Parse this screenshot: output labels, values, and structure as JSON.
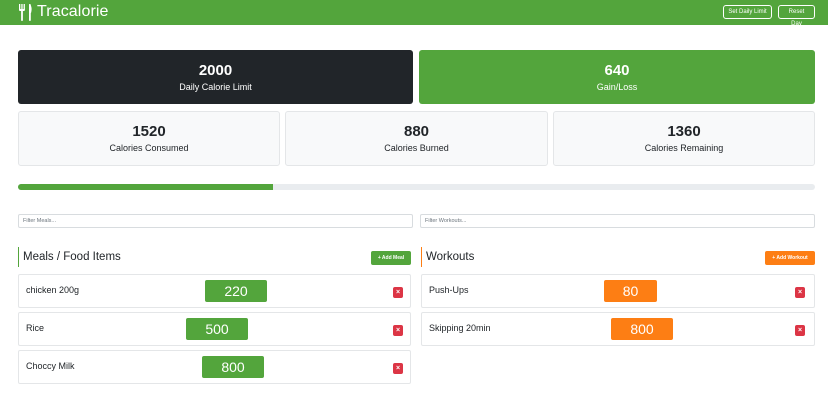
{
  "app": {
    "title": "Tracalorie",
    "set_limit_label": "Set Daily Limit",
    "reset_label": "Reset Day",
    "brand_icon": "fork-knife-icon"
  },
  "stats": {
    "limit": {
      "value": "2000",
      "label": "Daily Calorie Limit"
    },
    "gain_loss": {
      "value": "640",
      "label": "Gain/Loss"
    },
    "consumed": {
      "value": "1520",
      "label": "Calories Consumed"
    },
    "burned": {
      "value": "880",
      "label": "Calories Burned"
    },
    "remaining": {
      "value": "1360",
      "label": "Calories Remaining"
    }
  },
  "progress": {
    "percent": 32
  },
  "filters": {
    "meals_placeholder": "Filter Meals...",
    "workouts_placeholder": "Filter Workouts..."
  },
  "meals": {
    "title": "Meals / Food Items",
    "add_label": "+ Add Meal",
    "items": [
      {
        "name": "chicken 200g",
        "calories": "220"
      },
      {
        "name": "Rice",
        "calories": "500"
      },
      {
        "name": "Choccy Milk",
        "calories": "800"
      }
    ]
  },
  "workouts": {
    "title": "Workouts",
    "add_label": "+ Add Workout",
    "items": [
      {
        "name": "Push-Ups",
        "calories": "80"
      },
      {
        "name": "Skipping 20min",
        "calories": "800"
      }
    ]
  },
  "delete_glyph": "×",
  "colors": {
    "primary": "#53a53c",
    "dark": "#212529",
    "workout": "#fd7e14",
    "danger": "#dc3545"
  }
}
